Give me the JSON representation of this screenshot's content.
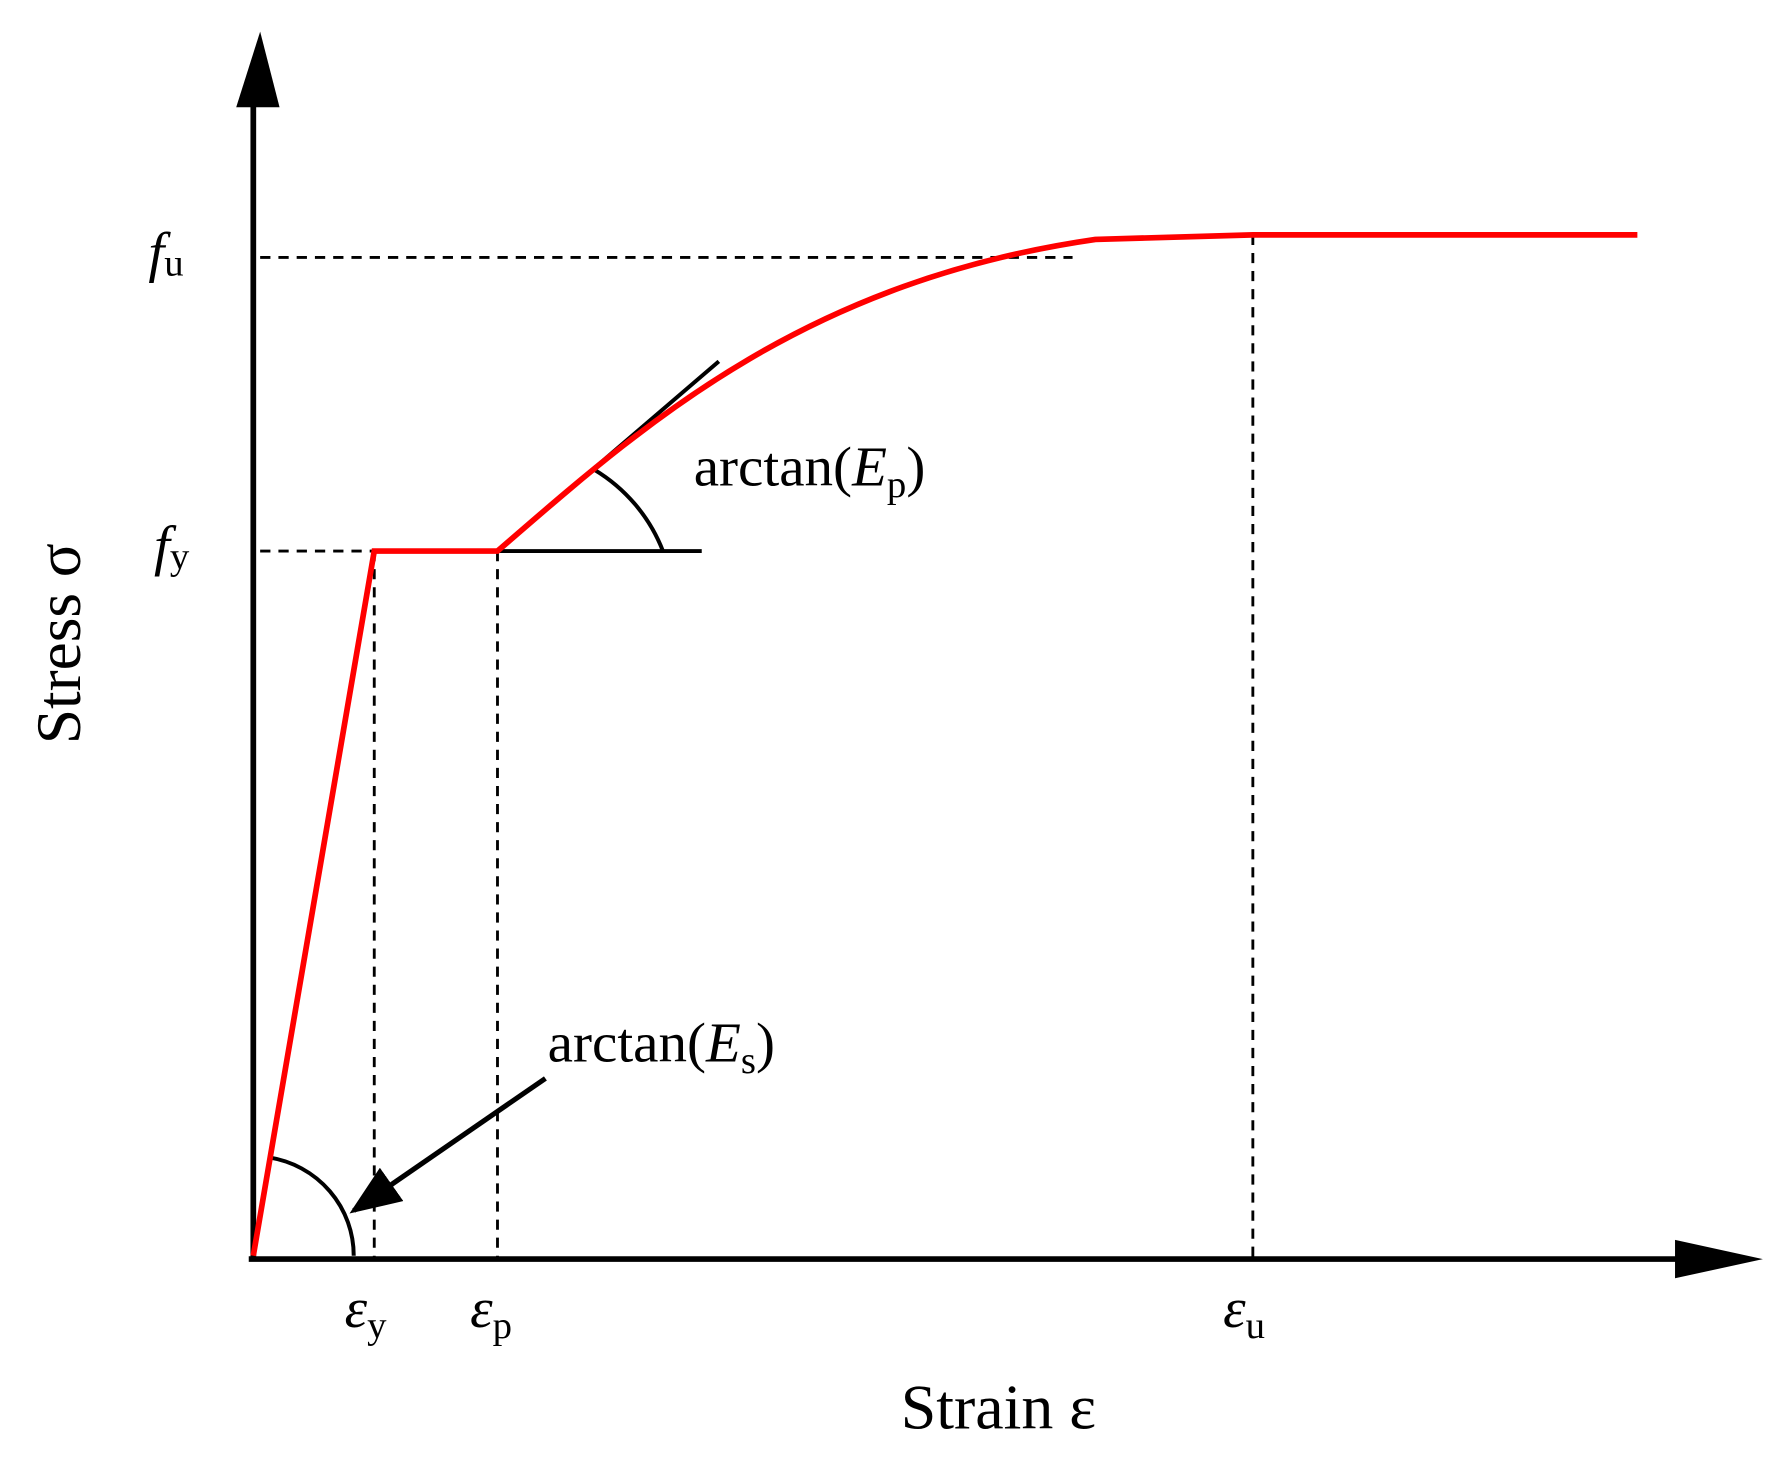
{
  "y_labels": [
    {
      "symbol": "f",
      "subscript": "u"
    },
    {
      "symbol": "f",
      "subscript": "y"
    }
  ],
  "x_labels": [
    {
      "symbol": "ε",
      "subscript": "y"
    },
    {
      "symbol": "ε",
      "subscript": "p"
    },
    {
      "symbol": "ε",
      "subscript": "u"
    }
  ],
  "axes": {
    "y": "Stress σ",
    "x": "Strain ε"
  },
  "annotations": [
    {
      "prefix": "arctan(",
      "symbol": "E",
      "subscript": "p",
      "suffix": ")"
    },
    {
      "prefix": "arctan(",
      "symbol": "E",
      "subscript": "s",
      "suffix": ")"
    }
  ]
}
